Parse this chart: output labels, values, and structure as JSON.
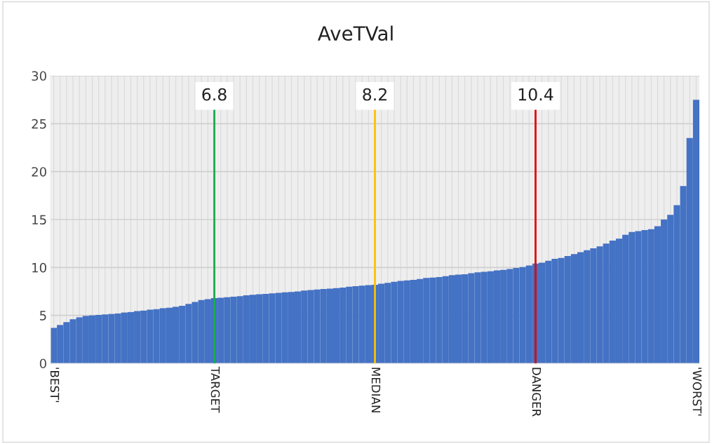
{
  "chart_data": {
    "type": "bar",
    "title": "AveTVal",
    "categories": [
      "'BEST'",
      null,
      null,
      null,
      null,
      null,
      null,
      null,
      null,
      null,
      null,
      null,
      null,
      null,
      null,
      null,
      null,
      null,
      null,
      null,
      null,
      null,
      null,
      null,
      null,
      "TARGET",
      null,
      null,
      null,
      null,
      null,
      null,
      null,
      null,
      null,
      null,
      null,
      null,
      null,
      null,
      null,
      null,
      null,
      null,
      null,
      null,
      null,
      null,
      null,
      null,
      "MEDIAN",
      null,
      null,
      null,
      null,
      null,
      null,
      null,
      null,
      null,
      null,
      null,
      null,
      null,
      null,
      null,
      null,
      null,
      null,
      null,
      null,
      null,
      null,
      null,
      null,
      "DANGER",
      null,
      null,
      null,
      null,
      null,
      null,
      null,
      null,
      null,
      null,
      null,
      null,
      null,
      null,
      null,
      null,
      null,
      null,
      null,
      null,
      null,
      null,
      null,
      null,
      "'WORST'"
    ],
    "values": [
      3.7,
      4.0,
      4.3,
      4.6,
      4.8,
      4.95,
      5.0,
      5.05,
      5.1,
      5.15,
      5.2,
      5.3,
      5.35,
      5.45,
      5.5,
      5.6,
      5.65,
      5.75,
      5.8,
      5.9,
      6.0,
      6.2,
      6.4,
      6.6,
      6.7,
      6.8,
      6.85,
      6.9,
      6.95,
      7.0,
      7.1,
      7.15,
      7.2,
      7.25,
      7.3,
      7.35,
      7.4,
      7.45,
      7.5,
      7.6,
      7.65,
      7.7,
      7.75,
      7.8,
      7.85,
      7.9,
      8.0,
      8.05,
      8.1,
      8.15,
      8.2,
      8.3,
      8.4,
      8.5,
      8.6,
      8.65,
      8.7,
      8.8,
      8.9,
      8.95,
      9.0,
      9.1,
      9.2,
      9.25,
      9.3,
      9.4,
      9.5,
      9.55,
      9.6,
      9.7,
      9.75,
      9.85,
      9.95,
      10.05,
      10.2,
      10.4,
      10.5,
      10.7,
      10.9,
      11.0,
      11.2,
      11.4,
      11.6,
      11.8,
      12.0,
      12.2,
      12.5,
      12.8,
      13.0,
      13.4,
      13.7,
      13.8,
      13.9,
      14.0,
      14.3,
      15.0,
      15.5,
      16.5,
      18.5,
      23.5,
      27.5
    ],
    "color": "#4472c4",
    "ylim": [
      0,
      30
    ],
    "yticks": [
      0,
      5,
      10,
      15,
      20,
      25,
      30
    ],
    "grid": true,
    "ref_lines": [
      {
        "axis": "x",
        "value": "TARGET",
        "label": "6.8",
        "color": "#1aab4b"
      },
      {
        "axis": "x",
        "value": "MEDIAN",
        "label": "8.2",
        "color": "#ffc000"
      },
      {
        "axis": "x",
        "value": "DANGER",
        "label": "10.4",
        "color": "#e00000"
      }
    ]
  }
}
